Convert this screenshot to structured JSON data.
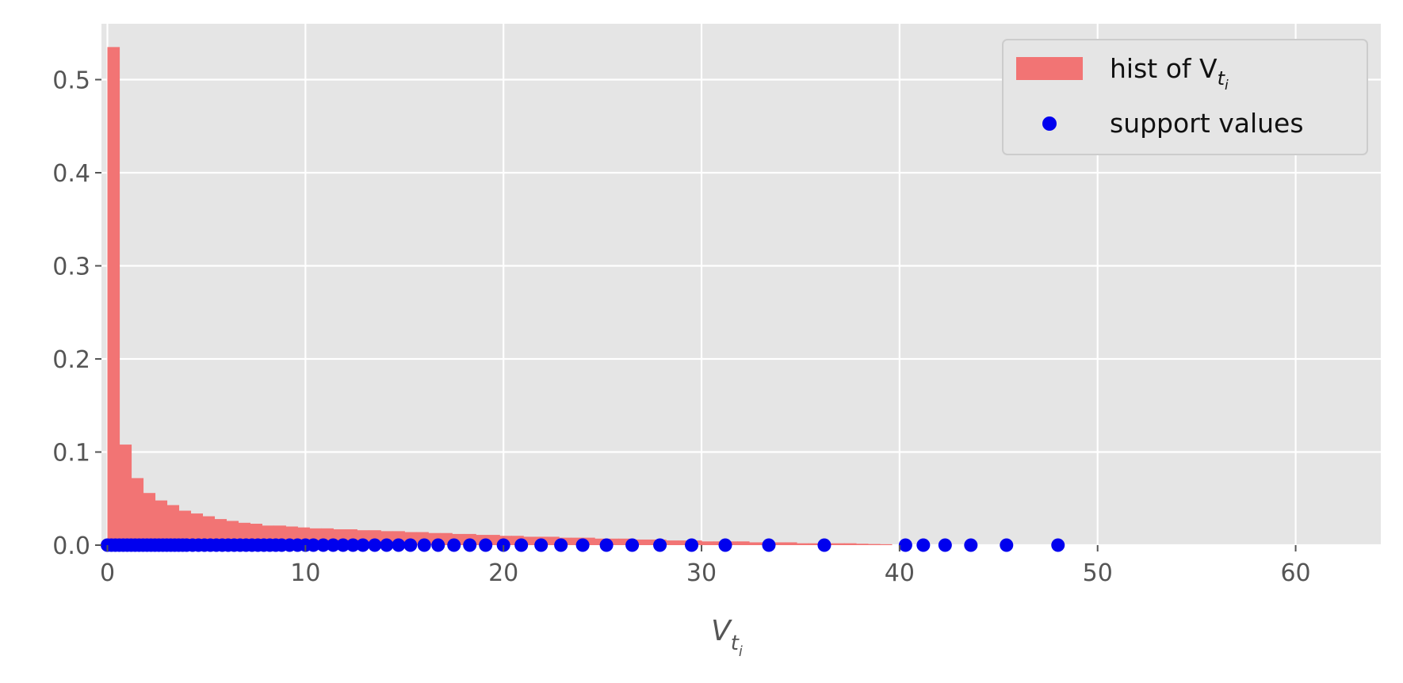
{
  "chart_data": {
    "type": "bar",
    "xlabel": "V",
    "xlabel_sub": "t",
    "xlabel_subsub": "i",
    "xlim": [
      -0.3,
      64.3
    ],
    "ylim": [
      0,
      0.56
    ],
    "xticks": [
      0,
      10,
      20,
      30,
      40,
      50,
      60
    ],
    "xtick_labels": [
      "0",
      "10",
      "20",
      "30",
      "40",
      "50",
      "60"
    ],
    "yticks": [
      0.0,
      0.1,
      0.2,
      0.3,
      0.4,
      0.5
    ],
    "ytick_labels": [
      "0.0",
      "0.1",
      "0.2",
      "0.3",
      "0.4",
      "0.5"
    ],
    "grid": true,
    "legend_position": "top-right",
    "colors": {
      "plot_background": "#e5e5e5",
      "grid": "#ffffff",
      "histogram": "#f27474",
      "support_points": "#0000ee",
      "legend_background": "#e5e5e5",
      "legend_border": "#cccccc"
    },
    "series": [
      {
        "type": "histogram",
        "name": "hist of V",
        "name_sub": "t",
        "name_subsub": "i",
        "bin_start": 0,
        "bin_width": 0.6,
        "values": [
          0.535,
          0.108,
          0.072,
          0.056,
          0.048,
          0.043,
          0.037,
          0.034,
          0.031,
          0.028,
          0.026,
          0.024,
          0.023,
          0.021,
          0.021,
          0.02,
          0.019,
          0.018,
          0.018,
          0.017,
          0.017,
          0.016,
          0.016,
          0.015,
          0.015,
          0.014,
          0.014,
          0.013,
          0.013,
          0.012,
          0.012,
          0.011,
          0.011,
          0.01,
          0.01,
          0.009,
          0.009,
          0.009,
          0.008,
          0.008,
          0.008,
          0.007,
          0.007,
          0.007,
          0.006,
          0.006,
          0.006,
          0.005,
          0.005,
          0.005,
          0.004,
          0.004,
          0.004,
          0.004,
          0.003,
          0.003,
          0.003,
          0.003,
          0.002,
          0.002,
          0.002,
          0.002,
          0.002,
          0.0015,
          0.0012,
          0.001
        ]
      },
      {
        "type": "scatter",
        "name": "support values",
        "x": [
          0.0,
          0.2,
          0.4,
          0.6,
          0.8,
          1.0,
          1.2,
          1.4,
          1.6,
          1.8,
          2.0,
          2.2,
          2.4,
          2.6,
          2.8,
          3.0,
          3.2,
          3.4,
          3.6,
          3.8,
          4.0,
          4.3,
          4.6,
          4.9,
          5.2,
          5.5,
          5.8,
          6.1,
          6.4,
          6.7,
          7.0,
          7.3,
          7.6,
          7.9,
          8.2,
          8.5,
          8.8,
          9.2,
          9.6,
          10.0,
          10.4,
          10.9,
          11.4,
          11.9,
          12.4,
          12.9,
          13.5,
          14.1,
          14.7,
          15.3,
          16.0,
          16.7,
          17.5,
          18.3,
          19.1,
          20.0,
          20.9,
          21.9,
          22.9,
          24.0,
          25.2,
          26.5,
          27.9,
          29.5,
          31.2,
          33.4,
          36.2,
          40.3,
          41.2,
          42.3,
          43.6,
          45.4,
          48.0
        ],
        "y": [
          0,
          0,
          0,
          0,
          0,
          0,
          0,
          0,
          0,
          0,
          0,
          0,
          0,
          0,
          0,
          0,
          0,
          0,
          0,
          0,
          0,
          0,
          0,
          0,
          0,
          0,
          0,
          0,
          0,
          0,
          0,
          0,
          0,
          0,
          0,
          0,
          0,
          0,
          0,
          0,
          0,
          0,
          0,
          0,
          0,
          0,
          0,
          0,
          0,
          0,
          0,
          0,
          0,
          0,
          0,
          0,
          0,
          0,
          0,
          0,
          0,
          0,
          0,
          0,
          0,
          0,
          0,
          0,
          0,
          0,
          0,
          0,
          0
        ]
      }
    ]
  }
}
